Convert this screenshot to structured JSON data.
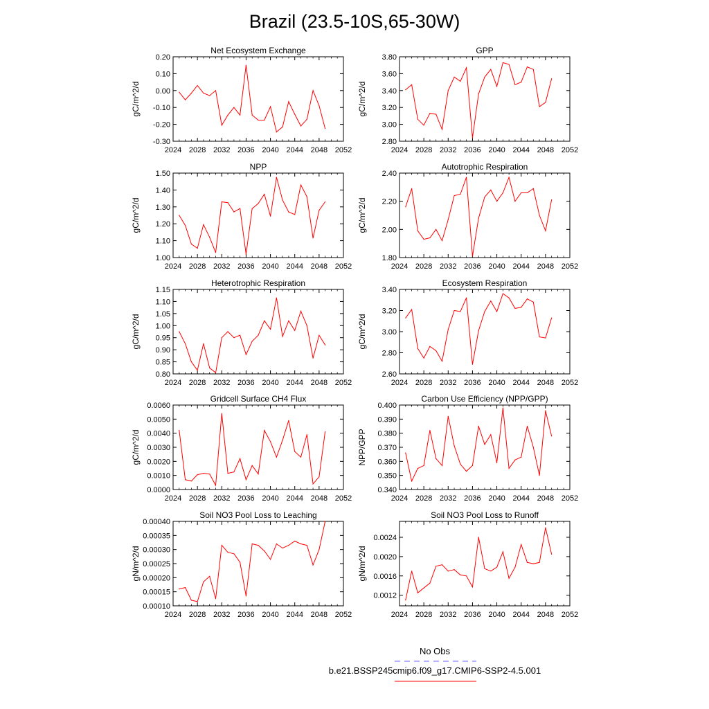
{
  "figure_title": "Brazil (23.5-10S,65-30W)",
  "legend": {
    "obs_label": "No Obs",
    "model_label": "b.e21.BSSP245cmip6.f09_g17.CMIP6-SSP2-4.5.001",
    "obs_color": "#6666ff",
    "model_color": "#ff0000"
  },
  "chart_data": [
    {
      "type": "line",
      "title": "Net Ecosystem Exchange",
      "ylabel": "gC/m^2/d",
      "xlim": [
        2024,
        2052
      ],
      "ylim": [
        -0.3,
        0.2
      ],
      "xticks": [
        "2024",
        "2028",
        "2032",
        "2036",
        "2040",
        "2044",
        "2048",
        "2052"
      ],
      "yticks": [
        "-0.30",
        "-0.20",
        "-0.10",
        "0.00",
        "0.10",
        "0.20"
      ],
      "x": [
        2025,
        2026,
        2027,
        2028,
        2029,
        2030,
        2031,
        2032,
        2033,
        2034,
        2035,
        2036,
        2037,
        2038,
        2039,
        2040,
        2041,
        2042,
        2043,
        2044,
        2045,
        2046,
        2047,
        2048,
        2049
      ],
      "series": [
        {
          "color": "#ff0000",
          "values": [
            -0.01,
            -0.055,
            -0.015,
            0.03,
            -0.015,
            -0.03,
            0.0,
            -0.205,
            -0.145,
            -0.1,
            -0.145,
            0.15,
            -0.145,
            -0.175,
            -0.175,
            -0.095,
            -0.245,
            -0.215,
            -0.065,
            -0.14,
            -0.21,
            -0.17,
            0.0,
            -0.09,
            -0.225
          ]
        }
      ]
    },
    {
      "type": "line",
      "title": "GPP",
      "ylabel": "gC/m^2/d",
      "xlim": [
        2024,
        2052
      ],
      "ylim": [
        2.8,
        3.8
      ],
      "xticks": [
        "2024",
        "2028",
        "2032",
        "2036",
        "2040",
        "2044",
        "2048",
        "2052"
      ],
      "yticks": [
        "2.80",
        "3.00",
        "3.20",
        "3.40",
        "3.60",
        "3.80"
      ],
      "x": [
        2025,
        2026,
        2027,
        2028,
        2029,
        2030,
        2031,
        2032,
        2033,
        2034,
        2035,
        2036,
        2037,
        2038,
        2039,
        2040,
        2041,
        2042,
        2043,
        2044,
        2045,
        2046,
        2047,
        2048,
        2049
      ],
      "series": [
        {
          "color": "#ff0000",
          "values": [
            3.41,
            3.47,
            3.06,
            2.99,
            3.13,
            3.12,
            2.94,
            3.4,
            3.56,
            3.51,
            3.67,
            2.84,
            3.36,
            3.56,
            3.65,
            3.45,
            3.73,
            3.71,
            3.47,
            3.5,
            3.68,
            3.65,
            3.21,
            3.26,
            3.54
          ]
        }
      ]
    },
    {
      "type": "line",
      "title": "NPP",
      "ylabel": "gC/m^2/d",
      "xlim": [
        2024,
        2052
      ],
      "ylim": [
        1.0,
        1.5
      ],
      "xticks": [
        "2024",
        "2028",
        "2032",
        "2036",
        "2040",
        "2044",
        "2048",
        "2052"
      ],
      "yticks": [
        "1.00",
        "1.10",
        "1.20",
        "1.30",
        "1.40",
        "1.50"
      ],
      "x": [
        2025,
        2026,
        2027,
        2028,
        2029,
        2030,
        2031,
        2032,
        2033,
        2034,
        2035,
        2036,
        2037,
        2038,
        2039,
        2040,
        2041,
        2042,
        2043,
        2044,
        2045,
        2046,
        2047,
        2048,
        2049
      ],
      "series": [
        {
          "color": "#ff0000",
          "values": [
            1.25,
            1.19,
            1.08,
            1.055,
            1.195,
            1.12,
            1.03,
            1.33,
            1.325,
            1.27,
            1.29,
            1.02,
            1.29,
            1.32,
            1.375,
            1.245,
            1.475,
            1.34,
            1.27,
            1.255,
            1.43,
            1.36,
            1.115,
            1.28,
            1.33
          ]
        }
      ]
    },
    {
      "type": "line",
      "title": "Autotrophic Respiration",
      "ylabel": "gC/m^2/d",
      "xlim": [
        2024,
        2052
      ],
      "ylim": [
        1.8,
        2.4
      ],
      "xticks": [
        "2024",
        "2028",
        "2032",
        "2036",
        "2040",
        "2044",
        "2048",
        "2052"
      ],
      "yticks": [
        "1.80",
        "2.00",
        "2.20",
        "2.40"
      ],
      "x": [
        2025,
        2026,
        2027,
        2028,
        2029,
        2030,
        2031,
        2032,
        2033,
        2034,
        2035,
        2036,
        2037,
        2038,
        2039,
        2040,
        2041,
        2042,
        2043,
        2044,
        2045,
        2046,
        2047,
        2048,
        2049
      ],
      "series": [
        {
          "color": "#ff0000",
          "values": [
            2.16,
            2.29,
            1.99,
            1.93,
            1.94,
            2.0,
            1.92,
            2.07,
            2.24,
            2.25,
            2.37,
            1.81,
            2.08,
            2.23,
            2.28,
            2.2,
            2.26,
            2.37,
            2.2,
            2.26,
            2.26,
            2.29,
            2.1,
            1.99,
            2.21
          ]
        }
      ]
    },
    {
      "type": "line",
      "title": "Heterotrophic Respiration",
      "ylabel": "gC/m^2/d",
      "xlim": [
        2024,
        2052
      ],
      "ylim": [
        0.8,
        1.15
      ],
      "xticks": [
        "2024",
        "2028",
        "2032",
        "2036",
        "2040",
        "2044",
        "2048",
        "2052"
      ],
      "yticks": [
        "0.80",
        "0.85",
        "0.90",
        "0.95",
        "1.00",
        "1.05",
        "1.10",
        "1.15"
      ],
      "x": [
        2025,
        2026,
        2027,
        2028,
        2029,
        2030,
        2031,
        2032,
        2033,
        2034,
        2035,
        2036,
        2037,
        2038,
        2039,
        2040,
        2041,
        2042,
        2043,
        2044,
        2045,
        2046,
        2047,
        2048,
        2049
      ],
      "series": [
        {
          "color": "#ff0000",
          "values": [
            0.975,
            0.925,
            0.85,
            0.815,
            0.925,
            0.825,
            0.805,
            0.95,
            0.975,
            0.95,
            0.96,
            0.88,
            0.935,
            0.96,
            1.02,
            0.985,
            1.115,
            0.955,
            1.02,
            0.98,
            1.06,
            1.0,
            0.865,
            0.96,
            0.92
          ]
        }
      ]
    },
    {
      "type": "line",
      "title": "Ecosystem Respiration",
      "ylabel": "gC/m^2/d",
      "xlim": [
        2024,
        2052
      ],
      "ylim": [
        2.6,
        3.4
      ],
      "xticks": [
        "2024",
        "2028",
        "2032",
        "2036",
        "2040",
        "2044",
        "2048",
        "2052"
      ],
      "yticks": [
        "2.60",
        "2.80",
        "3.00",
        "3.20",
        "3.40"
      ],
      "x": [
        2025,
        2026,
        2027,
        2028,
        2029,
        2030,
        2031,
        2032,
        2033,
        2034,
        2035,
        2036,
        2037,
        2038,
        2039,
        2040,
        2041,
        2042,
        2043,
        2044,
        2045,
        2046,
        2047,
        2048,
        2049
      ],
      "series": [
        {
          "color": "#ff0000",
          "values": [
            3.13,
            3.21,
            2.84,
            2.75,
            2.86,
            2.82,
            2.72,
            3.02,
            3.2,
            3.19,
            3.32,
            2.69,
            3.01,
            3.19,
            3.29,
            3.19,
            3.36,
            3.32,
            3.22,
            3.23,
            3.31,
            3.28,
            2.95,
            2.94,
            3.13
          ]
        }
      ]
    },
    {
      "type": "line",
      "title": "Gridcell Surface CH4 Flux",
      "ylabel": "gC/m^2/d",
      "xlim": [
        2024,
        2052
      ],
      "ylim": [
        0.0,
        0.006
      ],
      "xticks": [
        "2024",
        "2028",
        "2032",
        "2036",
        "2040",
        "2044",
        "2048",
        "2052"
      ],
      "yticks": [
        "0.0000",
        "0.0010",
        "0.0020",
        "0.0030",
        "0.0040",
        "0.0050",
        "0.0060"
      ],
      "x": [
        2025,
        2026,
        2027,
        2028,
        2029,
        2030,
        2031,
        2032,
        2033,
        2034,
        2035,
        2036,
        2037,
        2038,
        2039,
        2040,
        2041,
        2042,
        2043,
        2044,
        2045,
        2046,
        2047,
        2048,
        2049
      ],
      "series": [
        {
          "color": "#ff0000",
          "values": [
            0.0042,
            0.0007,
            0.0006,
            0.00105,
            0.00115,
            0.0011,
            0.0003,
            0.0054,
            0.00115,
            0.00125,
            0.0022,
            0.0007,
            0.0017,
            0.0011,
            0.0042,
            0.0034,
            0.0023,
            0.0035,
            0.0049,
            0.0027,
            0.0023,
            0.0039,
            0.0004,
            0.0009,
            0.0041
          ]
        }
      ]
    },
    {
      "type": "line",
      "title": "Carbon Use Efficiency (NPP/GPP)",
      "ylabel": "NPP/GPP",
      "xlim": [
        2024,
        2052
      ],
      "ylim": [
        0.34,
        0.4
      ],
      "xticks": [
        "2024",
        "2028",
        "2032",
        "2036",
        "2040",
        "2044",
        "2048",
        "2052"
      ],
      "yticks": [
        "0.340",
        "0.350",
        "0.360",
        "0.370",
        "0.380",
        "0.390",
        "0.400"
      ],
      "x": [
        2025,
        2026,
        2027,
        2028,
        2029,
        2030,
        2031,
        2032,
        2033,
        2034,
        2035,
        2036,
        2037,
        2038,
        2039,
        2040,
        2041,
        2042,
        2043,
        2044,
        2045,
        2046,
        2047,
        2048,
        2049
      ],
      "series": [
        {
          "color": "#ff0000",
          "values": [
            0.366,
            0.346,
            0.355,
            0.357,
            0.382,
            0.362,
            0.357,
            0.392,
            0.371,
            0.358,
            0.353,
            0.357,
            0.385,
            0.372,
            0.379,
            0.359,
            0.398,
            0.355,
            0.361,
            0.363,
            0.385,
            0.37,
            0.35,
            0.396,
            0.378
          ]
        }
      ]
    },
    {
      "type": "line",
      "title": "Soil NO3 Pool Loss to Leaching",
      "ylabel": "gN/m^2/d",
      "xlim": [
        2024,
        2052
      ],
      "ylim": [
        0.0001,
        0.0004
      ],
      "xticks": [
        "2024",
        "2028",
        "2032",
        "2036",
        "2040",
        "2044",
        "2048",
        "2052"
      ],
      "yticks": [
        "0.00010",
        "0.00015",
        "0.00020",
        "0.00025",
        "0.00030",
        "0.00035",
        "0.00040"
      ],
      "x": [
        2025,
        2026,
        2027,
        2028,
        2029,
        2030,
        2031,
        2032,
        2033,
        2034,
        2035,
        2036,
        2037,
        2038,
        2039,
        2040,
        2041,
        2042,
        2043,
        2044,
        2045,
        2046,
        2047,
        2048,
        2049
      ],
      "series": [
        {
          "color": "#ff0000",
          "values": [
            0.00016,
            0.000165,
            0.00012,
            0.000115,
            0.000185,
            0.000205,
            0.000125,
            0.000315,
            0.00029,
            0.000285,
            0.000255,
            0.000135,
            0.00032,
            0.000315,
            0.000295,
            0.000265,
            0.00032,
            0.000305,
            0.000315,
            0.00033,
            0.00032,
            0.000315,
            0.000245,
            0.0003,
            0.0004
          ]
        }
      ]
    },
    {
      "type": "line",
      "title": "Soil NO3 Pool Loss to Runoff",
      "ylabel": "gN/m^2/d",
      "xlim": [
        2024,
        2052
      ],
      "ylim": [
        0.00098,
        0.00273
      ],
      "xticks": [
        "2024",
        "2028",
        "2032",
        "2036",
        "2040",
        "2044",
        "2048",
        "2052"
      ],
      "ytick_values": [
        0.0012,
        0.0016,
        0.002,
        0.0024
      ],
      "yticks": [
        "0.0012",
        "0.0016",
        "0.0020",
        "0.0024"
      ],
      "x": [
        2025,
        2026,
        2027,
        2028,
        2029,
        2030,
        2031,
        2032,
        2033,
        2034,
        2035,
        2036,
        2037,
        2038,
        2039,
        2040,
        2041,
        2042,
        2043,
        2044,
        2045,
        2046,
        2047,
        2048,
        2049
      ],
      "series": [
        {
          "color": "#ff0000",
          "values": [
            0.0011,
            0.0017,
            0.00125,
            0.00135,
            0.00145,
            0.0018,
            0.00183,
            0.0017,
            0.00173,
            0.00162,
            0.0016,
            0.00137,
            0.0024,
            0.00175,
            0.0017,
            0.00178,
            0.0021,
            0.00155,
            0.00178,
            0.00225,
            0.00188,
            0.00185,
            0.00188,
            0.0026,
            0.00205
          ]
        }
      ]
    }
  ]
}
